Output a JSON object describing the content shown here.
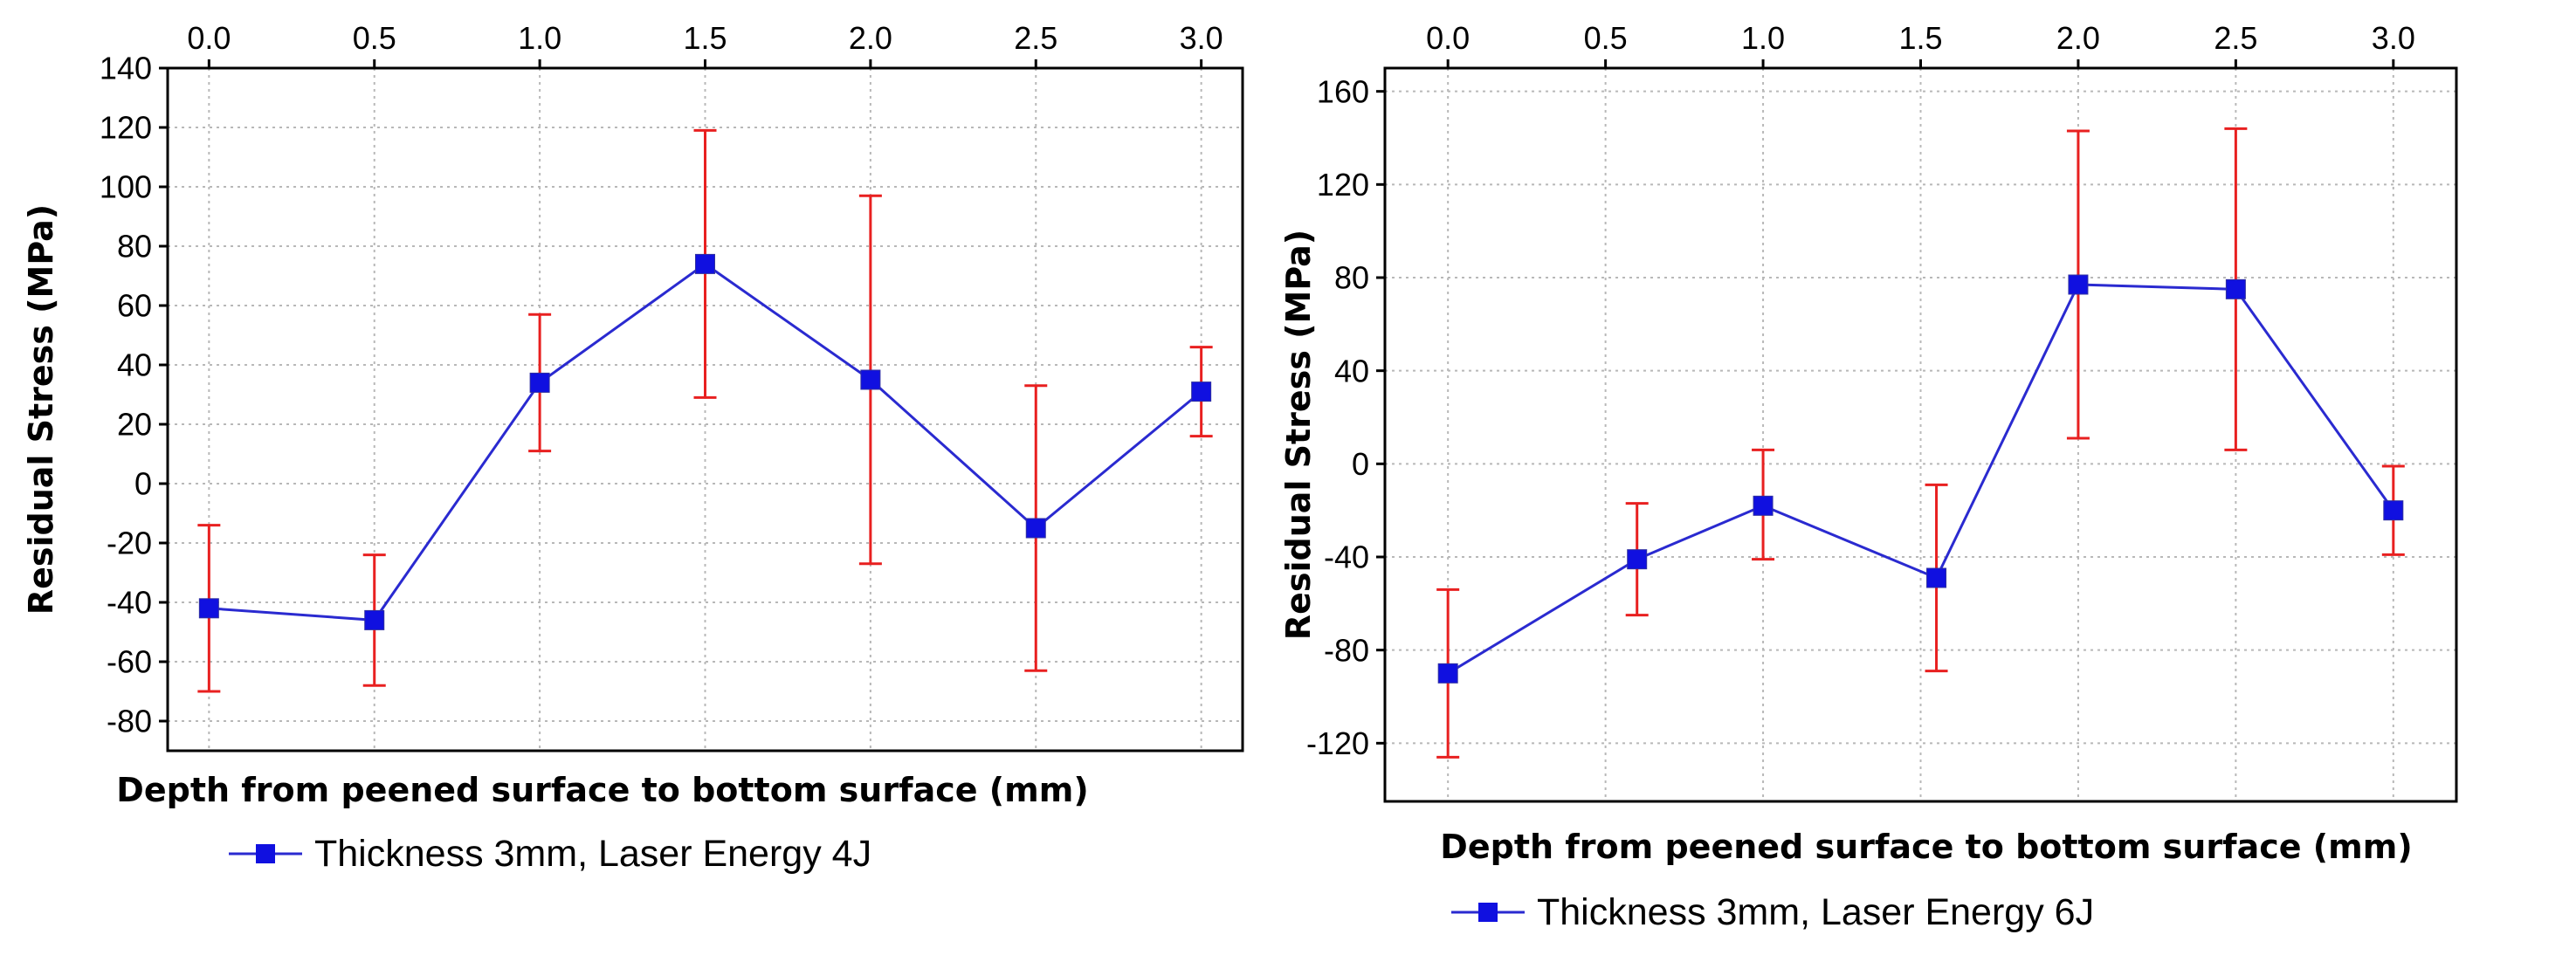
{
  "chart_data": [
    {
      "type": "line",
      "xlabel": "Depth from peened surface to bottom surface (mm)",
      "ylabel": "Residual Stress (MPa)",
      "x_ticks": [
        "0.0",
        "0.5",
        "1.0",
        "1.5",
        "2.0",
        "2.5",
        "3.0"
      ],
      "x_tick_values": [
        0.0,
        0.5,
        1.0,
        1.5,
        2.0,
        2.5,
        3.0
      ],
      "xlim": [
        -0.125,
        3.125
      ],
      "y_ticks": [
        140,
        120,
        100,
        80,
        60,
        40,
        20,
        0,
        -20,
        -40,
        -60,
        -80
      ],
      "ylim": [
        -90,
        140
      ],
      "grid": true,
      "legend_position": "bottom-center",
      "series": [
        {
          "name": "Thickness 3mm, Laser Energy 4J",
          "line_color": "#2a2ad0",
          "marker_color": "#1010e0",
          "error_color": "#e82020",
          "x": [
            0.0,
            0.5,
            1.0,
            1.5,
            2.0,
            2.5,
            3.0
          ],
          "values": [
            -42,
            -46,
            34,
            74,
            35,
            -15,
            31
          ],
          "error_low": [
            -70,
            -68,
            11,
            29,
            -27,
            -63,
            16
          ],
          "error_high": [
            -14,
            -24,
            57,
            119,
            97,
            33,
            46
          ]
        }
      ]
    },
    {
      "type": "line",
      "xlabel": "Depth from peened surface to bottom surface (mm)",
      "ylabel": "Residual Stress (MPa)",
      "x_ticks": [
        "0.0",
        "0.5",
        "1.0",
        "1.5",
        "2.0",
        "2.5",
        "3.0"
      ],
      "x_tick_values": [
        0.0,
        0.5,
        1.0,
        1.5,
        2.0,
        2.5,
        3.0
      ],
      "xlim": [
        -0.2,
        3.2
      ],
      "y_ticks": [
        160,
        120,
        80,
        40,
        0,
        -40,
        -80,
        -120
      ],
      "ylim": [
        -145,
        170
      ],
      "grid": true,
      "legend_position": "bottom-center",
      "series": [
        {
          "name": "Thickness 3mm, Laser Energy 6J",
          "line_color": "#2a2ad0",
          "marker_color": "#1010e0",
          "error_color": "#e82020",
          "x": [
            0.0,
            0.5,
            1.0,
            1.5,
            2.0,
            2.5,
            3.0
          ],
          "plot_x": [
            0.0,
            0.6,
            1.0,
            1.55,
            2.0,
            2.5,
            3.0
          ],
          "values": [
            -90,
            -41,
            -18,
            -49,
            77,
            75,
            -20
          ],
          "error_low": [
            -126,
            -65,
            -41,
            -89,
            11,
            6,
            -39
          ],
          "error_high": [
            -54,
            -17,
            6,
            -9,
            143,
            144,
            -1
          ]
        }
      ]
    }
  ]
}
